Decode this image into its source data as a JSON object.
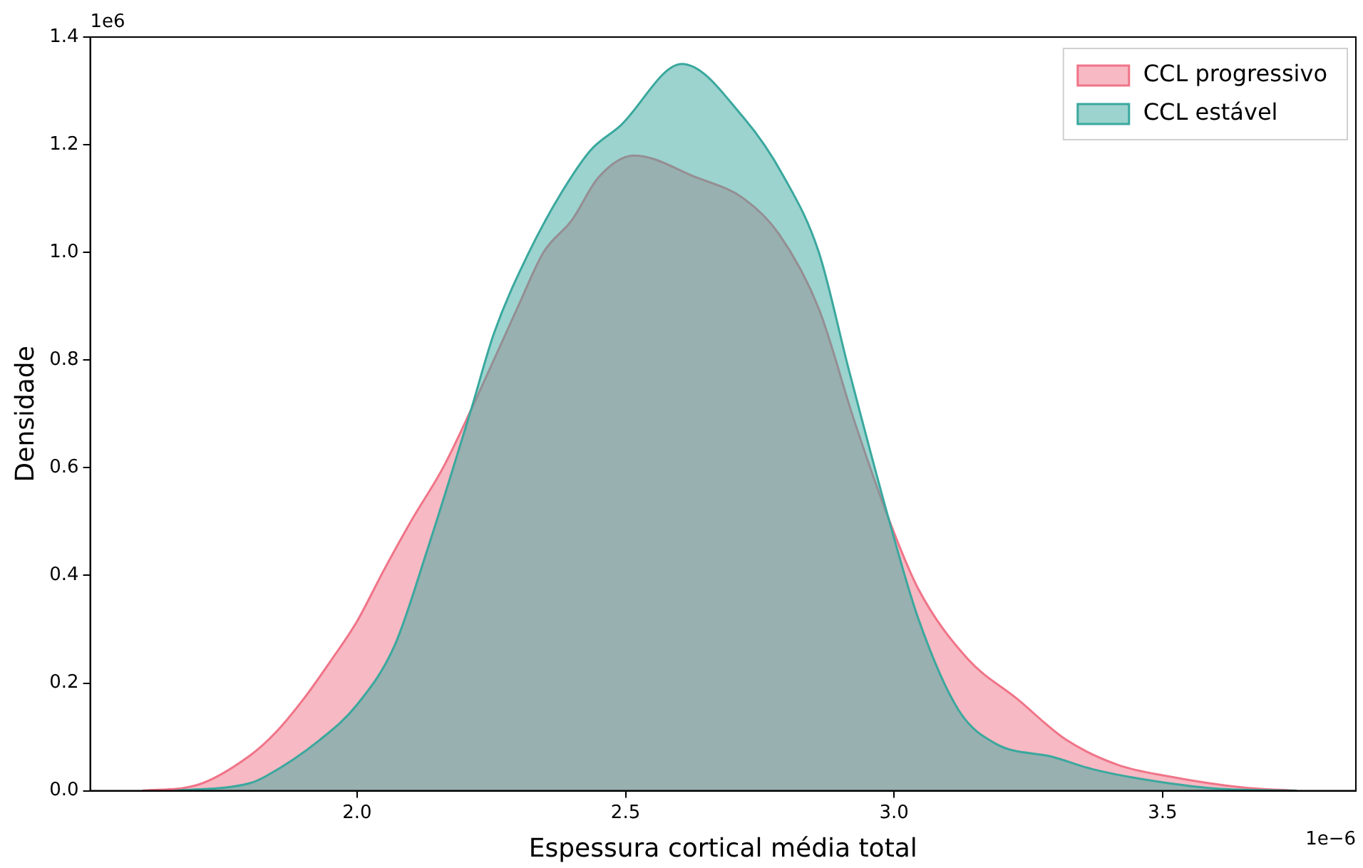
{
  "chart_data": {
    "type": "area",
    "xlabel": "Espessura cortical média total",
    "ylabel": "Densidade",
    "xlim": [
      1.503,
      3.86
    ],
    "ylim": [
      0,
      1.4
    ],
    "xticks": [
      {
        "value": 2,
        "label": "2.0"
      },
      {
        "value": 2.5,
        "label": "2.5"
      },
      {
        "value": 3,
        "label": "3.0"
      },
      {
        "value": 3.5,
        "label": "3.5"
      }
    ],
    "yticks": [
      {
        "value": 0,
        "label": "0.0"
      },
      {
        "value": 0.2,
        "label": "0.2"
      },
      {
        "value": 0.4,
        "label": "0.4"
      },
      {
        "value": 0.6,
        "label": "0.6"
      },
      {
        "value": 0.8,
        "label": "0.8"
      },
      {
        "value": 1,
        "label": "1.0"
      },
      {
        "value": 1.2,
        "label": "1.2"
      },
      {
        "value": 1.4,
        "label": "1.4"
      }
    ],
    "grid": false,
    "legend": "top right",
    "annotations": [
      "1e6",
      "1e−6"
    ],
    "series": [
      {
        "name": "CCL progressivo",
        "color": "#f07488",
        "x": [
          1.6,
          1.7,
          1.8,
          1.85,
          1.9,
          1.95,
          2.0,
          2.05,
          2.1,
          2.16,
          2.212,
          2.25,
          2.3,
          2.347,
          2.4,
          2.45,
          2.516,
          2.63,
          2.72,
          2.785,
          2.86,
          2.925,
          2.99,
          3.045,
          3.137,
          3.23,
          3.32,
          3.417,
          3.51,
          3.65,
          3.75
        ],
        "values": [
          0,
          0.01,
          0.065,
          0.11,
          0.17,
          0.24,
          0.315,
          0.41,
          0.5,
          0.6,
          0.707,
          0.79,
          0.9,
          1.0,
          1.06,
          1.14,
          1.18,
          1.14,
          1.1,
          1.035,
          0.895,
          0.69,
          0.505,
          0.375,
          0.245,
          0.17,
          0.095,
          0.048,
          0.027,
          0.006,
          0
        ]
      },
      {
        "name": "CCL estável",
        "color": "#3aa89e",
        "x": [
          1.66,
          1.8,
          1.83,
          1.93,
          2.0,
          2.07,
          2.13,
          2.212,
          2.255,
          2.32,
          2.38,
          2.435,
          2.49,
          2.605,
          2.72,
          2.795,
          2.86,
          2.915,
          2.99,
          3.045,
          3.12,
          3.19,
          3.295,
          3.37,
          3.46,
          3.6,
          3.75
        ],
        "values": [
          0,
          0.014,
          0.027,
          0.094,
          0.16,
          0.27,
          0.445,
          0.707,
          0.85,
          1.0,
          1.11,
          1.19,
          1.235,
          1.35,
          1.25,
          1.14,
          1.0,
          0.785,
          0.505,
          0.32,
          0.15,
          0.087,
          0.063,
          0.04,
          0.022,
          0.004,
          0
        ]
      }
    ]
  }
}
